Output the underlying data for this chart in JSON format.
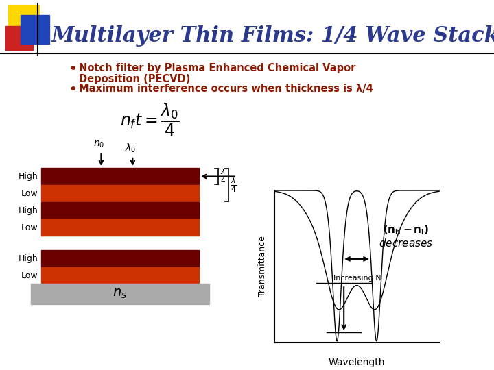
{
  "title": "Multilayer Thin Films: 1/4 Wave Stack",
  "title_color": "#2B3A8F",
  "bg_color": "#FFFFFF",
  "bullet_color": "#8B1A00",
  "layer_colors_high": "#6B0000",
  "layer_colors_low": "#CC3300",
  "layer_labels": [
    "High",
    "Low",
    "High",
    "Low",
    "High",
    "Low"
  ],
  "substrate_color": "#AAAAAA",
  "logo_yellow": "#FFD700",
  "logo_red": "#CC2222",
  "logo_blue": "#2244BB"
}
